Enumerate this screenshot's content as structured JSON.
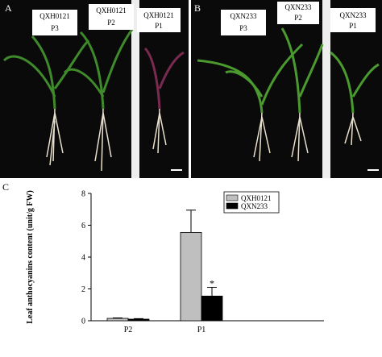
{
  "photos": {
    "A": {
      "panel": "A",
      "labels": [
        {
          "line1": "QXH0121",
          "line2": "P3"
        },
        {
          "line1": "QXH0121",
          "line2": "P2"
        },
        {
          "line1": "QXH0121",
          "line2": "P1"
        }
      ]
    },
    "B": {
      "panel": "B",
      "labels": [
        {
          "line1": "QXN233",
          "line2": "P3"
        },
        {
          "line1": "QXN233",
          "line2": "P2"
        },
        {
          "line1": "QXN233",
          "line2": "P1"
        }
      ]
    }
  },
  "chart_data": {
    "type": "bar",
    "panel": "C",
    "y_label": "Leaf anthocyanins content (unit/g FW)",
    "categories": [
      "P2",
      "P1"
    ],
    "series": [
      {
        "name": "QXH0121",
        "color": "#bfbfbf",
        "values": [
          0.15,
          5.55
        ],
        "errors": [
          0.03,
          1.4
        ]
      },
      {
        "name": "QXN233",
        "color": "#000000",
        "values": [
          0.1,
          1.55
        ],
        "errors": [
          0.03,
          0.55
        ]
      }
    ],
    "annotation": "*",
    "ylim": [
      0,
      8
    ],
    "yticks": [
      0,
      2,
      4,
      6,
      8
    ],
    "grid": false,
    "legend": "top-right"
  }
}
